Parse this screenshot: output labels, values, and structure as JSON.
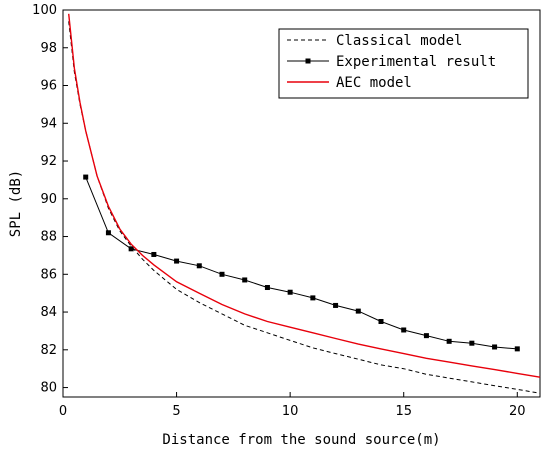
{
  "chart_data": {
    "type": "line",
    "title": "",
    "xlabel": "Distance from the sound source(m)",
    "ylabel": "SPL (dB)",
    "xlim": [
      0,
      21
    ],
    "ylim": [
      79.5,
      100
    ],
    "xticks": [
      0,
      5,
      10,
      15,
      20
    ],
    "yticks": [
      80,
      82,
      84,
      86,
      88,
      90,
      92,
      94,
      96,
      98,
      100
    ],
    "grid": false,
    "legend_position": "top-right",
    "series": [
      {
        "name": "Classical model",
        "style": "dashed",
        "color": "#000000",
        "x": [
          0.25,
          0.5,
          0.75,
          1,
          1.5,
          2,
          2.5,
          3,
          3.5,
          4,
          5,
          6,
          7,
          8,
          9,
          10,
          11,
          12,
          13,
          14,
          15,
          16,
          17,
          18,
          19,
          20,
          21
        ],
        "values": [
          99.4,
          96.7,
          95.0,
          93.6,
          91.2,
          89.5,
          88.3,
          87.5,
          86.8,
          86.2,
          85.2,
          84.5,
          83.9,
          83.3,
          82.9,
          82.5,
          82.1,
          81.8,
          81.5,
          81.2,
          81.0,
          80.7,
          80.5,
          80.3,
          80.1,
          79.9,
          79.7
        ]
      },
      {
        "name": "Experimental result",
        "style": "solid-markers",
        "color": "#000000",
        "x": [
          1,
          2,
          3,
          4,
          5,
          6,
          7,
          8,
          9,
          10,
          11,
          12,
          13,
          14,
          15,
          16,
          17,
          18,
          19,
          20
        ],
        "values": [
          91.15,
          88.2,
          87.35,
          87.05,
          86.7,
          86.45,
          86.0,
          85.7,
          85.3,
          85.05,
          84.75,
          84.35,
          84.05,
          83.5,
          83.05,
          82.75,
          82.45,
          82.35,
          82.15,
          82.05
        ]
      },
      {
        "name": "AEC model",
        "style": "solid",
        "color": "#e8000b",
        "x": [
          0.25,
          0.5,
          0.75,
          1,
          1.5,
          2,
          2.5,
          3,
          3.5,
          4,
          5,
          6,
          7,
          8,
          9,
          10,
          11,
          12,
          13,
          14,
          15,
          16,
          17,
          18,
          19,
          20,
          21
        ],
        "values": [
          99.8,
          96.9,
          95.1,
          93.6,
          91.2,
          89.6,
          88.4,
          87.6,
          87.0,
          86.5,
          85.6,
          85.0,
          84.4,
          83.9,
          83.5,
          83.2,
          82.9,
          82.6,
          82.3,
          82.05,
          81.8,
          81.55,
          81.35,
          81.15,
          80.95,
          80.75,
          80.55
        ]
      }
    ]
  }
}
